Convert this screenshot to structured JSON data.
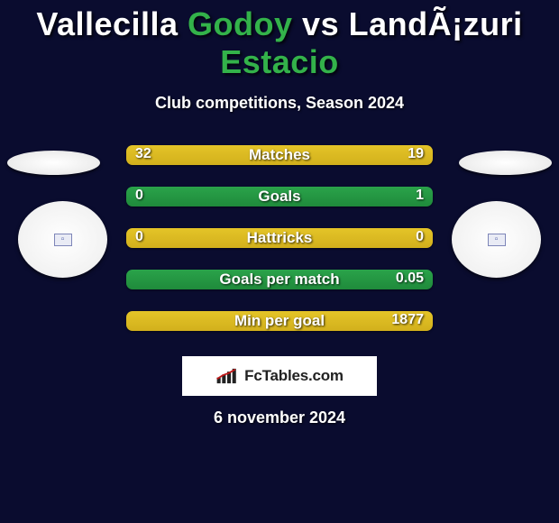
{
  "colors": {
    "page_bg": "#0a0c2f",
    "title_color": "#ffffff",
    "highlight_green": "#33b24a",
    "bar_yellow_top": "#e4c428",
    "bar_yellow_bottom": "#d2b01c",
    "bar_green_top": "#2aa34a",
    "bar_green_bottom": "#1f8a3b",
    "brand_bg": "#ffffff",
    "brand_text": "#222222"
  },
  "title": {
    "left_player_prefix": "Vallecilla ",
    "left_player_highlight": "Godoy",
    "vs": " vs ",
    "right_player_prefix": "LandÃ¡zuri ",
    "right_player_highlight": "Estacio",
    "fontsize": 36
  },
  "subtitle": "Club competitions, Season 2024",
  "subtitle_fontsize": 18,
  "flag_icons": {
    "left": "▫",
    "right": "▫"
  },
  "bars": [
    {
      "label": "Matches",
      "left": "32",
      "right": "19",
      "color": "yellow",
      "left_fill_pct": 63,
      "right_fill_pct": 37
    },
    {
      "label": "Goals",
      "left": "0",
      "right": "1",
      "color": "green",
      "left_fill_pct": 0,
      "right_fill_pct": 100
    },
    {
      "label": "Hattricks",
      "left": "0",
      "right": "0",
      "color": "yellow",
      "left_fill_pct": 0,
      "right_fill_pct": 0
    },
    {
      "label": "Goals per match",
      "left": "",
      "right": "0.05",
      "color": "green",
      "left_fill_pct": 0,
      "right_fill_pct": 100
    },
    {
      "label": "Min per goal",
      "left": "",
      "right": "1877",
      "color": "yellow",
      "left_fill_pct": 0,
      "right_fill_pct": 100
    }
  ],
  "bar_style": {
    "height": 22,
    "radius": 7,
    "spacing": 24,
    "label_fontsize": 17,
    "value_fontsize": 16
  },
  "brand": {
    "text": "FcTables.com",
    "fontsize": 17
  },
  "date": "6 november 2024",
  "date_fontsize": 18
}
